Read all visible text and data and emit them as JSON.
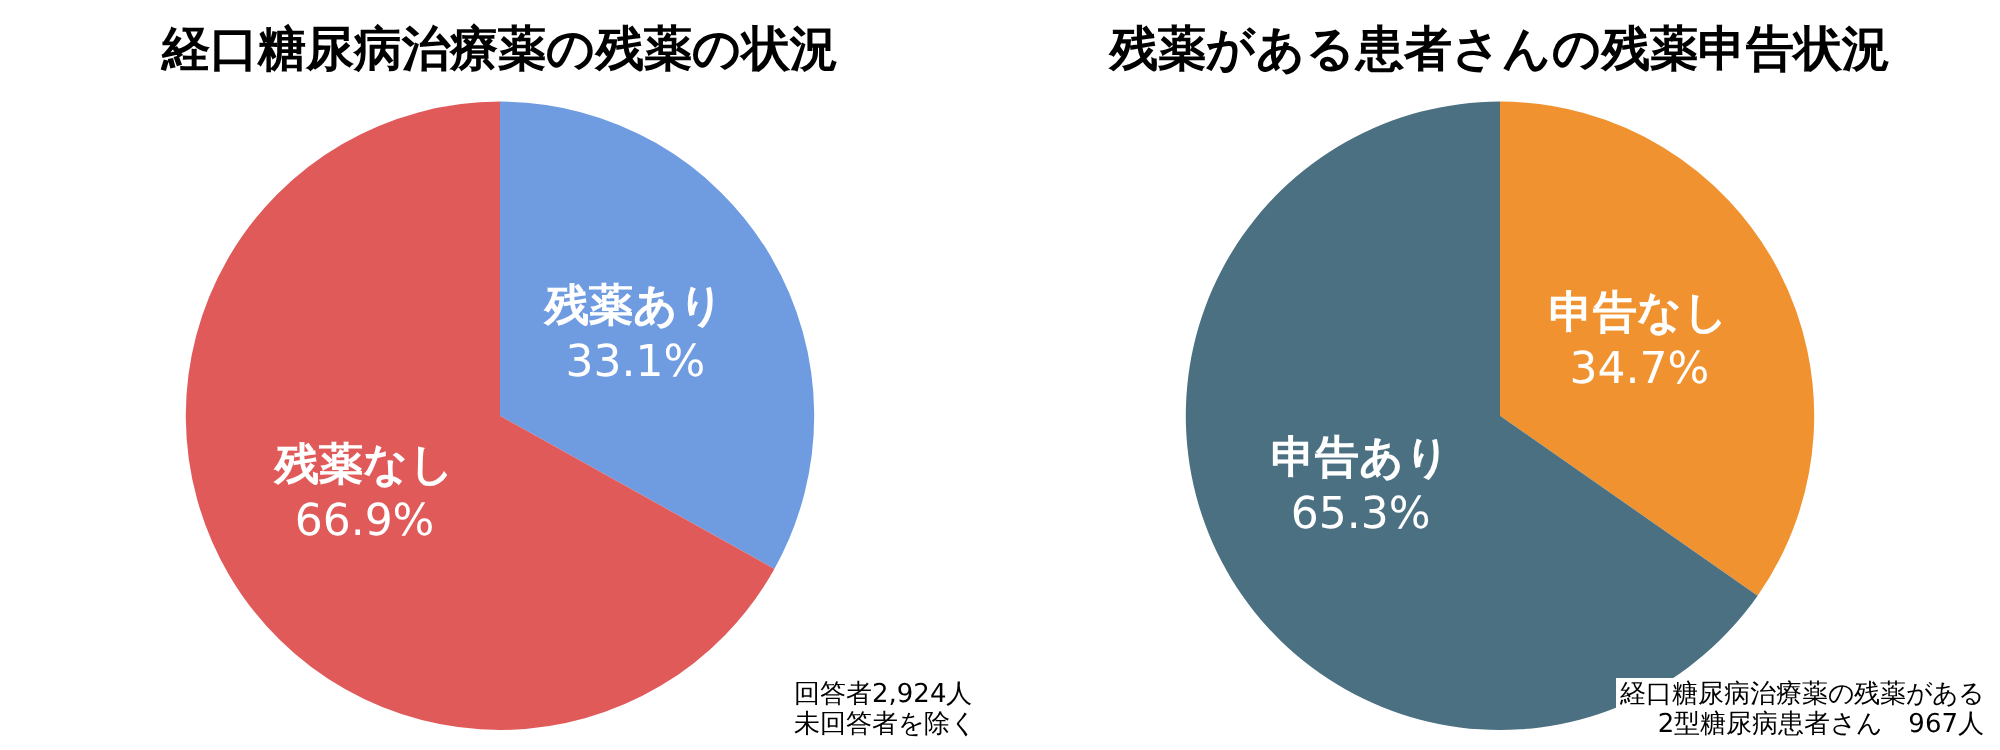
{
  "chart_data": [
    {
      "type": "pie",
      "title": "経口糖尿病治療薬の残薬の状況",
      "categories": [
        "残薬あり",
        "残薬なし"
      ],
      "values": [
        33.1,
        66.9
      ],
      "colors": [
        "#6f9be0",
        "#e05a5a"
      ],
      "value_labels": [
        "33.1%",
        "66.9%"
      ],
      "legend": false,
      "annotations": [
        "回答者2,924人",
        "未回答者を除く"
      ]
    },
    {
      "type": "pie",
      "title": "残薬がある患者さんの残薬申告状況",
      "categories": [
        "申告なし",
        "申告あり"
      ],
      "values": [
        34.7,
        65.3
      ],
      "colors": [
        "#f0922f",
        "#4a7082"
      ],
      "value_labels": [
        "34.7%",
        "65.3%"
      ],
      "legend": false,
      "annotations": [
        "経口糖尿病治療薬の残薬がある",
        "2型糖尿病患者さん　967人"
      ]
    }
  ]
}
